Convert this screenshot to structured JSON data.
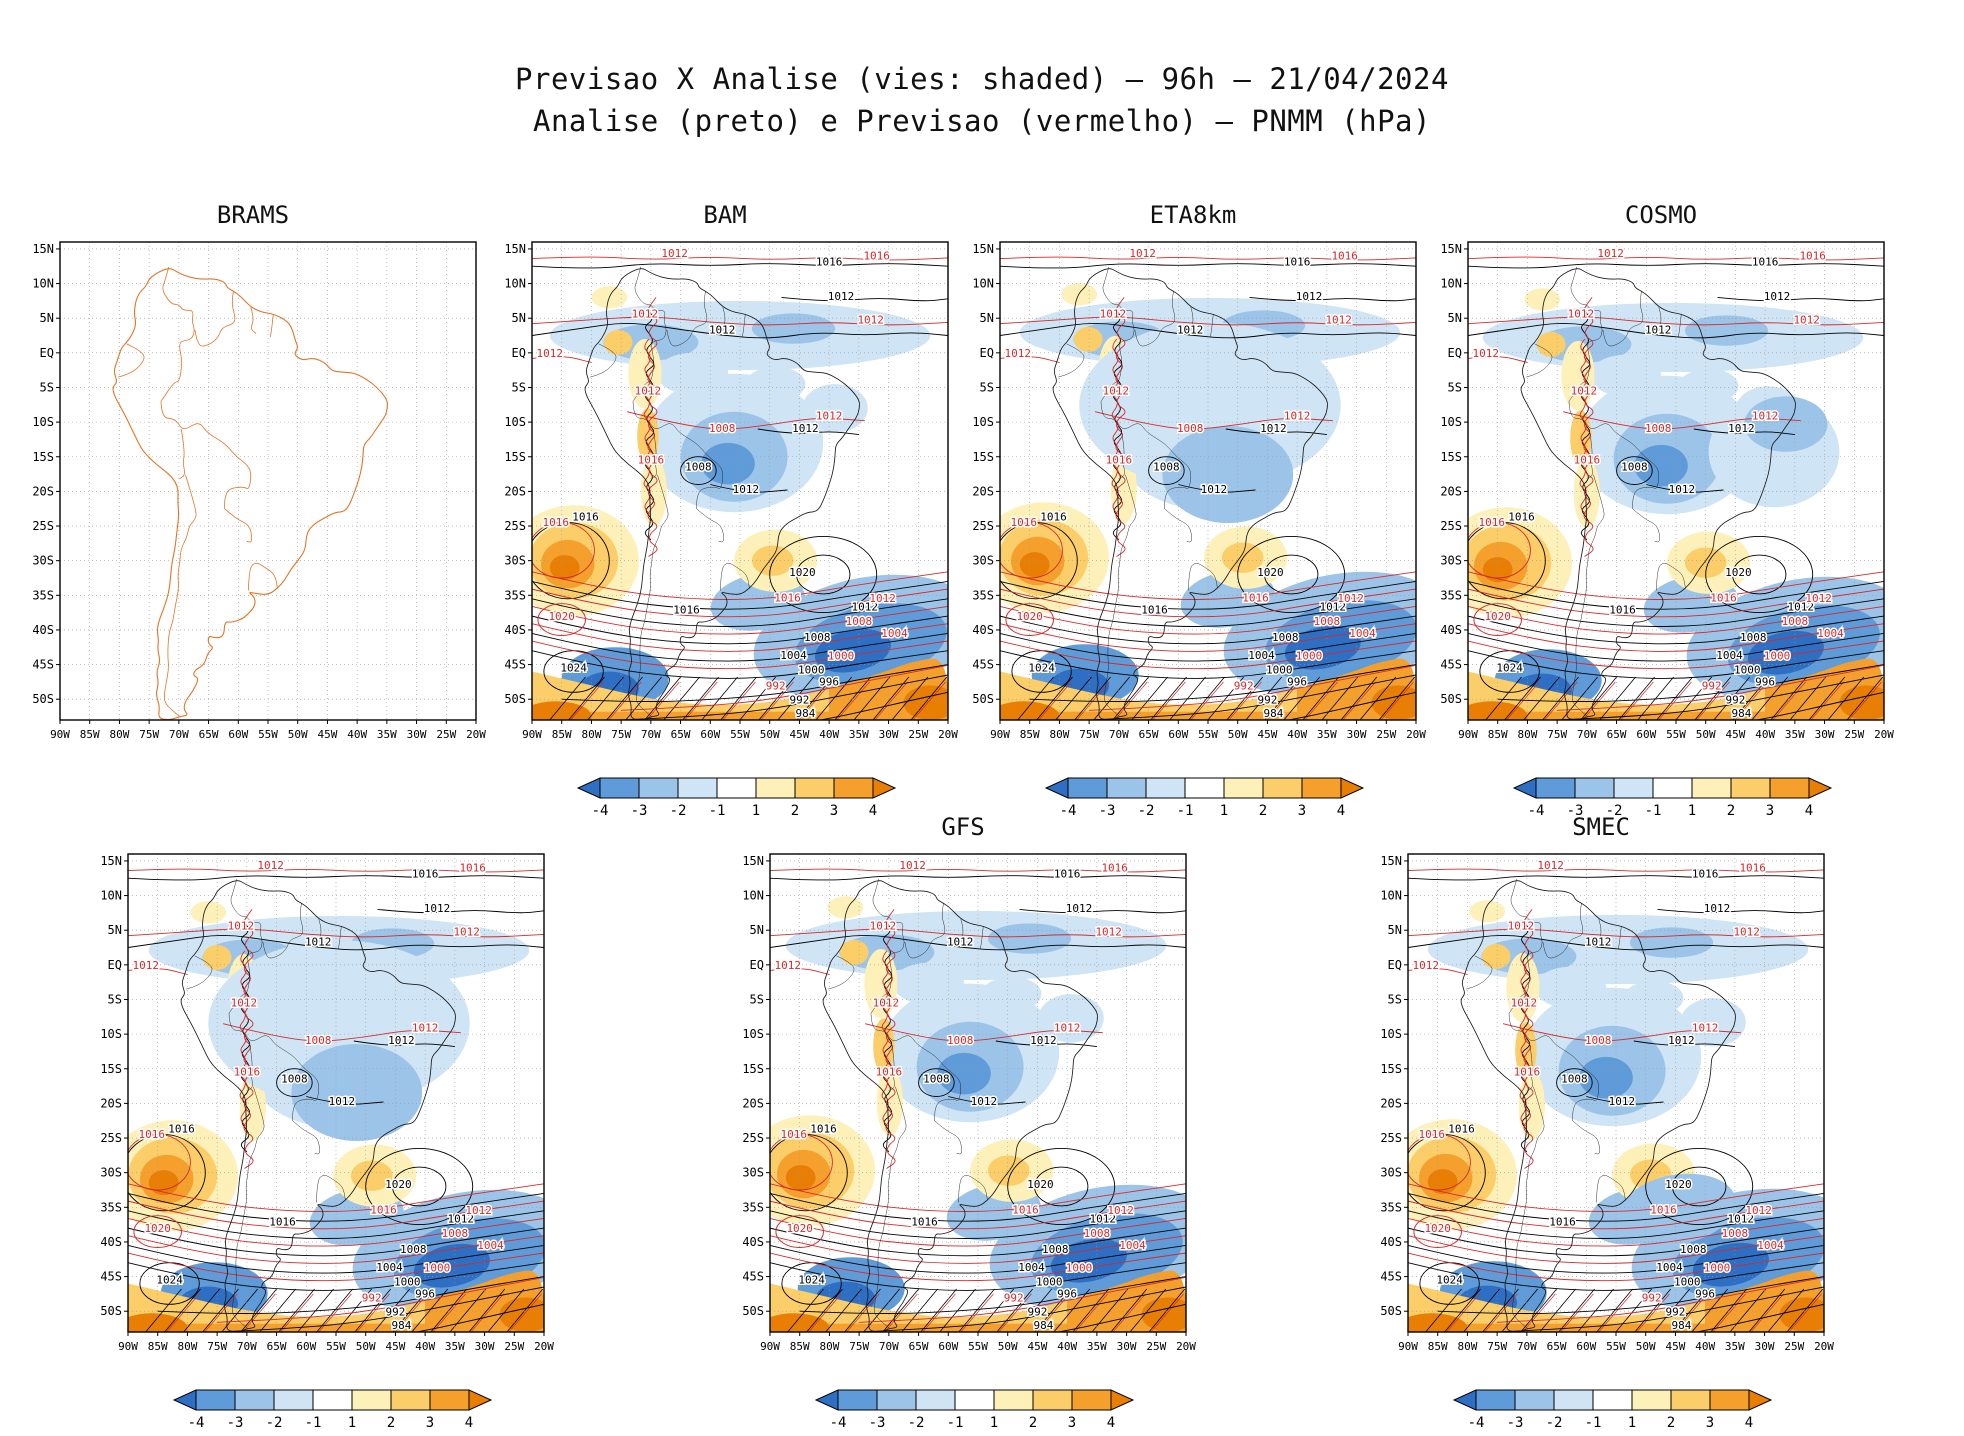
{
  "header": {
    "title_line1": "Previsao X Analise (vies: shaded) – 96h – 21/04/2024",
    "title_line2": "Analise (preto) e Previsao (vermelho) – PNMM (hPa)"
  },
  "axes": {
    "lat_ticks": [
      "15N",
      "10N",
      "5N",
      "EQ",
      "5S",
      "10S",
      "15S",
      "20S",
      "25S",
      "30S",
      "35S",
      "40S",
      "45S",
      "50S"
    ],
    "lon_ticks": [
      "90W",
      "85W",
      "80W",
      "75W",
      "70W",
      "65W",
      "60W",
      "55W",
      "50W",
      "45W",
      "40W",
      "35W",
      "30W",
      "25W",
      "20W"
    ]
  },
  "colorbar": {
    "tick_labels": [
      "-4",
      "-3",
      "-2",
      "-1",
      "1",
      "2",
      "3",
      "4"
    ],
    "colors": [
      "#2e6fc4",
      "#5f9bd8",
      "#9cc4e8",
      "#cfe4f4",
      "#ffffff",
      "#fdf0b8",
      "#fbce6a",
      "#f5a02c",
      "#e87e04"
    ]
  },
  "panels": [
    {
      "id": "brams",
      "label": "BRAMS",
      "row": 1,
      "style": "outline",
      "colorbar": false
    },
    {
      "id": "bam",
      "label": "BAM",
      "row": 1,
      "style": "full",
      "colorbar": true
    },
    {
      "id": "eta8km",
      "label": "ETA8km",
      "row": 1,
      "style": "full",
      "colorbar": true
    },
    {
      "id": "cosmo",
      "label": "COSMO",
      "row": 1,
      "style": "full",
      "colorbar": true
    },
    {
      "id": "model5",
      "label": "",
      "row": 2,
      "style": "full",
      "colorbar": true
    },
    {
      "id": "gfs",
      "label": "GFS",
      "row": 2,
      "style": "full",
      "colorbar": true
    },
    {
      "id": "smec",
      "label": "SMEC",
      "row": 2,
      "style": "full",
      "colorbar": true
    }
  ],
  "chart_data": {
    "type": "heatmap",
    "title": "Previsao X Analise (vies: shaded) – 96h – 21/04/2024",
    "subtitle": "Analise (preto) e Previsao (vermelho) – PNMM (hPa)",
    "variable": "PNMM (hPa)",
    "lead_time": "96h",
    "date": "21/04/2024",
    "models": [
      "BRAMS",
      "BAM",
      "ETA8km",
      "COSMO",
      "GFS",
      "SMEC"
    ],
    "lon_domain": [
      "90W",
      "20W"
    ],
    "lat_domain": [
      "15N",
      "50S"
    ],
    "shading": {
      "meaning": "vies (previsao - analise), hPa",
      "levels": [
        -4,
        -3,
        -2,
        -1,
        1,
        2,
        3,
        4
      ],
      "colors": [
        "#2e6fc4",
        "#5f9bd8",
        "#9cc4e8",
        "#cfe4f4",
        "#ffffff",
        "#fdf0b8",
        "#fbce6a",
        "#f5a02c",
        "#e87e04"
      ]
    },
    "analysis_contours_hPa": [
      984,
      992,
      996,
      1000,
      1004,
      1008,
      1012,
      1016,
      1020,
      1024
    ],
    "forecast_contours_hPa": [
      992,
      996,
      1000,
      1004,
      1008,
      1012,
      1016,
      1020
    ],
    "contour_labels": {
      "black": [
        {
          "v": "1016",
          "lon": -40,
          "lat": 12.6
        },
        {
          "v": "1012",
          "lon": -58,
          "lat": 2.8
        },
        {
          "v": "1012",
          "lon": -38,
          "lat": 7.6
        },
        {
          "v": "1012",
          "lon": -44,
          "lat": -11.4
        },
        {
          "v": "1008",
          "lon": -62,
          "lat": -17
        },
        {
          "v": "1012",
          "lon": -54,
          "lat": -20.2
        },
        {
          "v": "1016",
          "lon": -81,
          "lat": -24.2
        },
        {
          "v": "1020",
          "lon": -44.5,
          "lat": -32.2
        },
        {
          "v": "1024",
          "lon": -83,
          "lat": -46
        },
        {
          "v": "1016",
          "lon": -64,
          "lat": -37.6
        },
        {
          "v": "1012",
          "lon": -34,
          "lat": -37.2
        },
        {
          "v": "1008",
          "lon": -42,
          "lat": -41.6
        },
        {
          "v": "1004",
          "lon": -46,
          "lat": -44.2
        },
        {
          "v": "1000",
          "lon": -43,
          "lat": -46.3
        },
        {
          "v": "996",
          "lon": -40,
          "lat": -48
        },
        {
          "v": "992",
          "lon": -45,
          "lat": -50.6
        },
        {
          "v": "984",
          "lon": -44,
          "lat": -52.6
        }
      ],
      "red": [
        {
          "v": "1012",
          "lon": -66,
          "lat": 13.8
        },
        {
          "v": "1016",
          "lon": -32,
          "lat": 13.5
        },
        {
          "v": "1012",
          "lon": -33,
          "lat": 4.2
        },
        {
          "v": "1012",
          "lon": -71,
          "lat": 5.1
        },
        {
          "v": "1012",
          "lon": -87,
          "lat": -0.6
        },
        {
          "v": "1008",
          "lon": -58,
          "lat": -11.4
        },
        {
          "v": "1012",
          "lon": -40,
          "lat": -9.6
        },
        {
          "v": "1012",
          "lon": -70.5,
          "lat": -6
        },
        {
          "v": "1016",
          "lon": -70,
          "lat": -16
        },
        {
          "v": "1016",
          "lon": -86,
          "lat": -25
        },
        {
          "v": "1020",
          "lon": -85,
          "lat": -38.6
        },
        {
          "v": "1016",
          "lon": -47,
          "lat": -35.9
        },
        {
          "v": "1012",
          "lon": -31,
          "lat": -36
        },
        {
          "v": "1008",
          "lon": -35,
          "lat": -39.3
        },
        {
          "v": "1004",
          "lon": -29,
          "lat": -41
        },
        {
          "v": "1000",
          "lon": -38,
          "lat": -44.3
        },
        {
          "v": "992",
          "lon": -49,
          "lat": -48.6
        }
      ]
    }
  }
}
